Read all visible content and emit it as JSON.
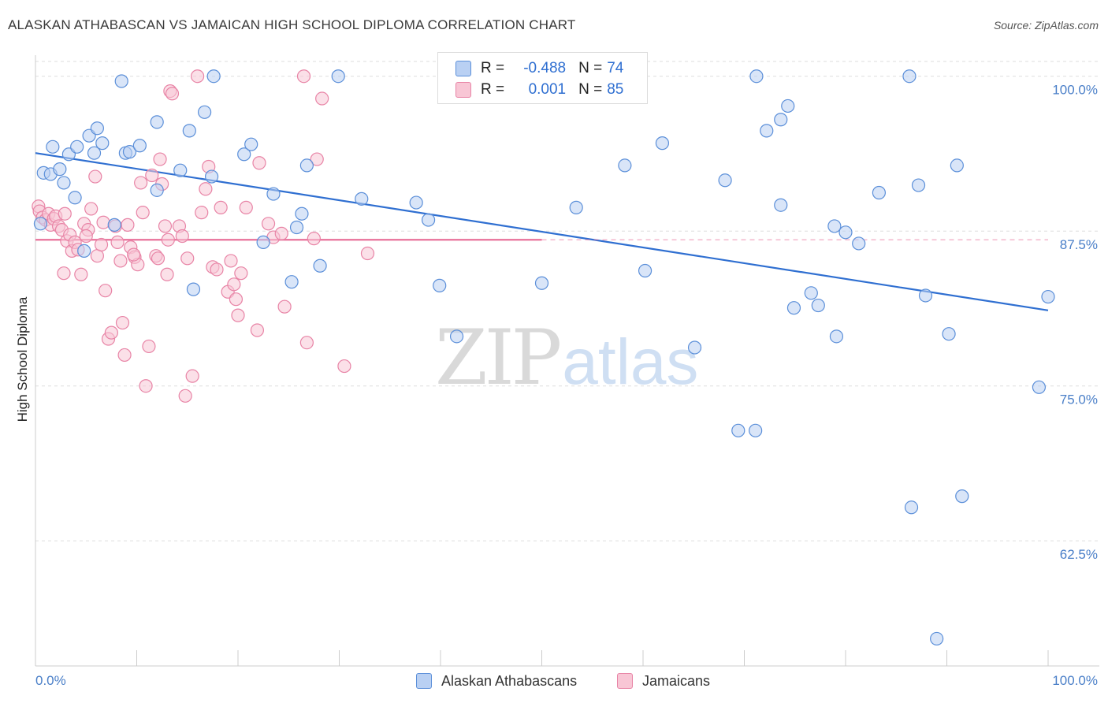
{
  "header": {
    "title": "ALASKAN ATHABASCAN VS JAMAICAN HIGH SCHOOL DIPLOMA CORRELATION CHART",
    "source": "Source: ZipAtlas.com"
  },
  "legend": {
    "rows": [
      {
        "r_label": "R =",
        "r_value": "-0.488",
        "n_label": "N =",
        "n_value": "74"
      },
      {
        "r_label": "R =",
        "r_value": "0.001",
        "n_label": "N =",
        "n_value": "85"
      }
    ]
  },
  "bottom_legend": {
    "series1": "Alaskan Athabascans",
    "series2": "Jamaicans"
  },
  "watermark": {
    "zip": "ZIP",
    "atlas": "atlas"
  },
  "colors": {
    "blue_fill": "#b9d0f3",
    "blue_stroke": "#5b8fd9",
    "blue_line": "#2f6fd1",
    "pink_fill": "#f8c6d5",
    "pink_stroke": "#e884a6",
    "pink_line": "#e8709a",
    "grid": "#dddddd",
    "tick_label": "#4a7fc8"
  },
  "chart_data": {
    "type": "scatter",
    "title": "ALASKAN ATHABASCAN VS JAMAICAN HIGH SCHOOL DIPLOMA CORRELATION CHART",
    "xlabel": "",
    "ylabel": "High School Diploma",
    "xlim": [
      0,
      100
    ],
    "ylim": [
      52.4,
      101.7
    ],
    "x_tick_labels": [
      "0.0%",
      "100.0%"
    ],
    "y_ticks": [
      100.0,
      87.5,
      75.0,
      62.5
    ],
    "y_tick_labels": [
      "100.0%",
      "87.5%",
      "75.0%",
      "62.5%"
    ],
    "grid": "horizontal dashed",
    "series": [
      {
        "name": "Alaskan Athabascans",
        "color": "#5b8fd9",
        "trend": {
          "x": [
            0,
            100
          ],
          "y": [
            93.8,
            81.1
          ]
        },
        "points": [
          [
            0.5,
            88.1
          ],
          [
            0.8,
            92.2
          ],
          [
            1.5,
            92.1
          ],
          [
            1.7,
            94.3
          ],
          [
            2.4,
            92.5
          ],
          [
            2.8,
            91.4
          ],
          [
            3.3,
            93.7
          ],
          [
            3.9,
            90.2
          ],
          [
            4.1,
            94.3
          ],
          [
            4.8,
            85.9
          ],
          [
            5.3,
            95.2
          ],
          [
            5.8,
            93.8
          ],
          [
            6.1,
            95.8
          ],
          [
            6.6,
            94.6
          ],
          [
            7.8,
            88.0
          ],
          [
            8.5,
            99.6
          ],
          [
            8.9,
            93.8
          ],
          [
            9.3,
            93.9
          ],
          [
            10.3,
            94.4
          ],
          [
            12.0,
            96.3
          ],
          [
            12.0,
            90.8
          ],
          [
            14.3,
            92.4
          ],
          [
            15.2,
            95.6
          ],
          [
            15.6,
            82.8
          ],
          [
            16.7,
            97.1
          ],
          [
            17.6,
            100.0
          ],
          [
            17.4,
            91.9
          ],
          [
            20.6,
            93.7
          ],
          [
            21.3,
            94.5
          ],
          [
            22.5,
            86.6
          ],
          [
            23.5,
            90.5
          ],
          [
            25.3,
            83.4
          ],
          [
            25.8,
            87.8
          ],
          [
            26.3,
            88.9
          ],
          [
            26.8,
            92.8
          ],
          [
            28.1,
            84.7
          ],
          [
            29.9,
            100.0
          ],
          [
            32.2,
            90.1
          ],
          [
            37.6,
            89.8
          ],
          [
            38.8,
            88.4
          ],
          [
            39.9,
            83.1
          ],
          [
            41.6,
            79.0
          ],
          [
            50.0,
            83.3
          ],
          [
            53.4,
            89.4
          ],
          [
            58.2,
            92.8
          ],
          [
            60.2,
            84.3
          ],
          [
            61.9,
            94.6
          ],
          [
            65.1,
            78.1
          ],
          [
            68.1,
            91.6
          ],
          [
            69.4,
            71.4
          ],
          [
            71.1,
            71.4
          ],
          [
            71.2,
            100.0
          ],
          [
            72.2,
            95.6
          ],
          [
            73.6,
            96.5
          ],
          [
            73.6,
            89.6
          ],
          [
            74.3,
            97.6
          ],
          [
            74.9,
            81.3
          ],
          [
            76.6,
            82.5
          ],
          [
            77.3,
            81.5
          ],
          [
            78.9,
            87.9
          ],
          [
            79.1,
            79.0
          ],
          [
            80.0,
            87.4
          ],
          [
            81.3,
            86.5
          ],
          [
            83.3,
            90.6
          ],
          [
            86.5,
            65.2
          ],
          [
            86.3,
            100.0
          ],
          [
            87.2,
            91.2
          ],
          [
            87.9,
            82.3
          ],
          [
            89.0,
            54.6
          ],
          [
            90.2,
            79.2
          ],
          [
            91.0,
            92.8
          ],
          [
            91.5,
            66.1
          ],
          [
            99.1,
            74.9
          ],
          [
            100.0,
            82.2
          ]
        ]
      },
      {
        "name": "Jamaicans",
        "color": "#e884a6",
        "trend": {
          "x": [
            0,
            50
          ],
          "y": [
            86.8,
            86.8
          ]
        },
        "dashed_extension": {
          "x": [
            50,
            100
          ],
          "y": [
            86.8,
            86.8
          ]
        },
        "points": [
          [
            0.3,
            89.5
          ],
          [
            0.4,
            89.1
          ],
          [
            0.7,
            88.6
          ],
          [
            1.0,
            88.4
          ],
          [
            1.3,
            88.9
          ],
          [
            1.5,
            88.0
          ],
          [
            1.8,
            88.5
          ],
          [
            2.0,
            88.7
          ],
          [
            2.3,
            87.9
          ],
          [
            2.6,
            87.6
          ],
          [
            2.8,
            84.1
          ],
          [
            2.9,
            88.9
          ],
          [
            3.1,
            86.7
          ],
          [
            3.4,
            87.2
          ],
          [
            3.6,
            85.9
          ],
          [
            3.9,
            86.6
          ],
          [
            4.2,
            86.0
          ],
          [
            4.5,
            84.0
          ],
          [
            4.8,
            88.1
          ],
          [
            5.2,
            87.6
          ],
          [
            5.5,
            89.3
          ],
          [
            5.9,
            91.9
          ],
          [
            6.1,
            85.5
          ],
          [
            6.5,
            86.4
          ],
          [
            6.9,
            82.7
          ],
          [
            7.2,
            78.8
          ],
          [
            7.5,
            79.3
          ],
          [
            7.9,
            87.9
          ],
          [
            8.1,
            86.6
          ],
          [
            8.4,
            85.1
          ],
          [
            8.6,
            80.1
          ],
          [
            8.8,
            77.5
          ],
          [
            9.1,
            88.0
          ],
          [
            9.4,
            86.2
          ],
          [
            9.8,
            85.4
          ],
          [
            10.1,
            84.8
          ],
          [
            10.4,
            91.4
          ],
          [
            10.6,
            89.0
          ],
          [
            10.9,
            75.0
          ],
          [
            11.2,
            78.2
          ],
          [
            11.5,
            92.0
          ],
          [
            11.9,
            85.5
          ],
          [
            12.1,
            85.3
          ],
          [
            12.3,
            93.3
          ],
          [
            12.5,
            91.3
          ],
          [
            12.8,
            87.9
          ],
          [
            13.0,
            84.0
          ],
          [
            13.3,
            98.8
          ],
          [
            13.5,
            98.6
          ],
          [
            14.2,
            87.9
          ],
          [
            14.5,
            87.1
          ],
          [
            14.8,
            74.2
          ],
          [
            15.0,
            85.3
          ],
          [
            15.5,
            75.8
          ],
          [
            16.0,
            100.0
          ],
          [
            16.4,
            89.0
          ],
          [
            16.8,
            90.9
          ],
          [
            17.1,
            92.7
          ],
          [
            17.5,
            84.6
          ],
          [
            17.9,
            84.4
          ],
          [
            18.3,
            89.4
          ],
          [
            19.0,
            82.6
          ],
          [
            19.3,
            85.1
          ],
          [
            19.6,
            83.2
          ],
          [
            19.8,
            82.0
          ],
          [
            20.0,
            80.7
          ],
          [
            20.3,
            84.1
          ],
          [
            20.8,
            89.4
          ],
          [
            21.9,
            79.5
          ],
          [
            23.0,
            88.1
          ],
          [
            23.5,
            87.0
          ],
          [
            24.3,
            87.3
          ],
          [
            24.6,
            81.4
          ],
          [
            26.5,
            100.0
          ],
          [
            26.8,
            78.5
          ],
          [
            27.5,
            86.9
          ],
          [
            27.8,
            93.3
          ],
          [
            28.3,
            98.2
          ],
          [
            30.5,
            76.6
          ],
          [
            32.8,
            85.7
          ],
          [
            5.0,
            87.1
          ],
          [
            6.7,
            88.2
          ],
          [
            9.7,
            85.6
          ],
          [
            13.1,
            86.8
          ],
          [
            22.1,
            93.0
          ]
        ]
      }
    ]
  }
}
